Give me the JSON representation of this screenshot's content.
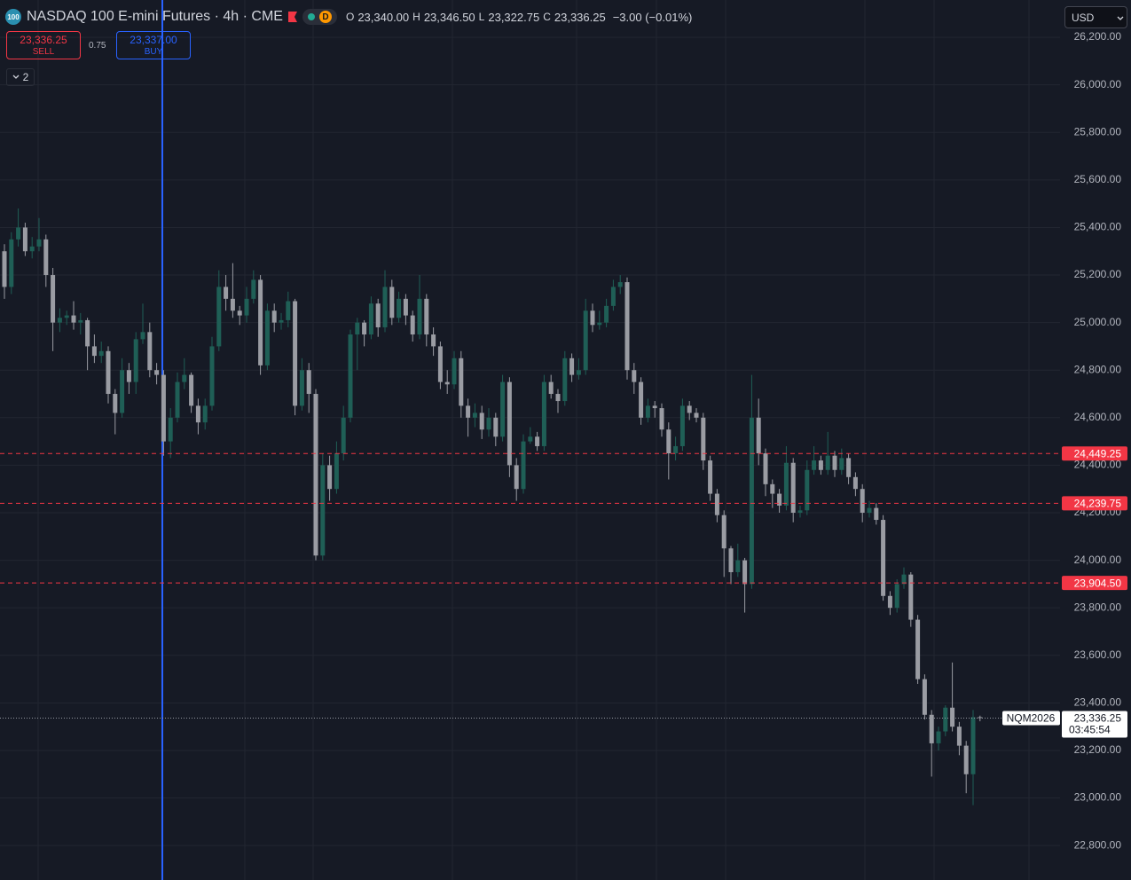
{
  "header": {
    "logo": "100",
    "title": "NASDAQ 100 E-mini Futures · 4h · CME",
    "badge": "D",
    "o_label": "O",
    "open": "23,340.00",
    "h_label": "H",
    "high": "23,346.50",
    "l_label": "L",
    "low": "23,322.75",
    "c_label": "C",
    "close": "23,336.25",
    "change": "−3.00 (−0.01%)"
  },
  "trade": {
    "sell_price": "23,336.25",
    "sell": "SELL",
    "spread": "0.75",
    "buy_price": "23,337.00",
    "buy": "BUY",
    "indicators": "2"
  },
  "currency": "USD",
  "chart_data": {
    "type": "candlestick",
    "up_color": "#1f5f56",
    "down_color": "#9a9ca3",
    "ylim": [
      22655,
      26357
    ],
    "yticks": [
      {
        "value": 22800,
        "label": "22,800.00"
      },
      {
        "value": 23000,
        "label": "23,000.00"
      },
      {
        "value": 23200,
        "label": "23,200.00"
      },
      {
        "value": 23400,
        "label": "23,400.00"
      },
      {
        "value": 23600,
        "label": "23,600.00"
      },
      {
        "value": 23800,
        "label": "23,800.00"
      },
      {
        "value": 24000,
        "label": "24,000.00"
      },
      {
        "value": 24200,
        "label": "24,200.00"
      },
      {
        "value": 24400,
        "label": "24,400.00"
      },
      {
        "value": 24600,
        "label": "24,600.00"
      },
      {
        "value": 24800,
        "label": "24,800.00"
      },
      {
        "value": 25000,
        "label": "25,000.00"
      },
      {
        "value": 25200,
        "label": "25,200.00"
      },
      {
        "value": 25400,
        "label": "25,400.00"
      },
      {
        "value": 25600,
        "label": "25,600.00"
      },
      {
        "value": 25800,
        "label": "25,800.00"
      },
      {
        "value": 26000,
        "label": "26,000.00"
      },
      {
        "value": 26200,
        "label": "26,200.00"
      }
    ],
    "grid": true,
    "hlines": [
      {
        "value": 24449.25,
        "label": "24,449.25"
      },
      {
        "value": 24239.75,
        "label": "24,239.75"
      },
      {
        "value": 23904.5,
        "label": "23,904.50"
      }
    ],
    "hline_color": "#f23645",
    "last_price": {
      "value": 23336.25,
      "label": "23,336.25",
      "symbol": "NQM2026",
      "countdown": "03:45:54"
    },
    "candles": [
      [
        25300,
        25330,
        25100,
        25150
      ],
      [
        25150,
        25380,
        25120,
        25350
      ],
      [
        25350,
        25480,
        25320,
        25400
      ],
      [
        25400,
        25420,
        25280,
        25300
      ],
      [
        25300,
        25360,
        25270,
        25320
      ],
      [
        25320,
        25440,
        25300,
        25350
      ],
      [
        25350,
        25370,
        25150,
        25200
      ],
      [
        25200,
        25230,
        24880,
        25000
      ],
      [
        25000,
        25060,
        24960,
        25020
      ],
      [
        25020,
        25050,
        24990,
        25030
      ],
      [
        25030,
        25090,
        24970,
        25000
      ],
      [
        25000,
        25040,
        24950,
        25010
      ],
      [
        25010,
        25020,
        24800,
        24900
      ],
      [
        24900,
        24950,
        24830,
        24860
      ],
      [
        24860,
        24920,
        24830,
        24880
      ],
      [
        24880,
        24900,
        24660,
        24700
      ],
      [
        24700,
        24720,
        24530,
        24620
      ],
      [
        24620,
        24850,
        24600,
        24800
      ],
      [
        24800,
        24830,
        24700,
        24750
      ],
      [
        24750,
        24960,
        24700,
        24930
      ],
      [
        24930,
        25080,
        24910,
        24960
      ],
      [
        24960,
        25000,
        24770,
        24800
      ],
      [
        24800,
        24830,
        24740,
        24780
      ],
      [
        24780,
        24800,
        24440,
        24500
      ],
      [
        24500,
        24640,
        24430,
        24600
      ],
      [
        24600,
        24790,
        24580,
        24750
      ],
      [
        24750,
        24850,
        24720,
        24780
      ],
      [
        24780,
        24790,
        24620,
        24650
      ],
      [
        24650,
        24680,
        24530,
        24580
      ],
      [
        24580,
        24680,
        24550,
        24650
      ],
      [
        24650,
        24940,
        24630,
        24900
      ],
      [
        24900,
        25220,
        24880,
        25150
      ],
      [
        25150,
        25200,
        25050,
        25100
      ],
      [
        25100,
        25250,
        25020,
        25050
      ],
      [
        25050,
        25070,
        24990,
        25030
      ],
      [
        25030,
        25150,
        25000,
        25100
      ],
      [
        25100,
        25220,
        25080,
        25180
      ],
      [
        25180,
        25200,
        24780,
        24820
      ],
      [
        24820,
        25080,
        24800,
        25050
      ],
      [
        25050,
        25080,
        24960,
        25000
      ],
      [
        25000,
        25040,
        24970,
        25010
      ],
      [
        25010,
        25130,
        24980,
        25090
      ],
      [
        25090,
        25100,
        24610,
        24650
      ],
      [
        24650,
        24850,
        24630,
        24800
      ],
      [
        24800,
        24830,
        24620,
        24700
      ],
      [
        24700,
        24720,
        24000,
        24020
      ],
      [
        24020,
        24450,
        24000,
        24400
      ],
      [
        24400,
        24440,
        24250,
        24300
      ],
      [
        24300,
        24500,
        24280,
        24450
      ],
      [
        24450,
        24650,
        24420,
        24600
      ],
      [
        24600,
        24970,
        24580,
        24950
      ],
      [
        24950,
        25020,
        24800,
        25000
      ],
      [
        25000,
        25010,
        24900,
        24950
      ],
      [
        24950,
        25110,
        24930,
        25080
      ],
      [
        25080,
        25100,
        24940,
        24980
      ],
      [
        24980,
        25220,
        24960,
        25150
      ],
      [
        25150,
        25180,
        24990,
        25020
      ],
      [
        25020,
        25130,
        25000,
        25100
      ],
      [
        25100,
        25120,
        24990,
        25030
      ],
      [
        25030,
        25050,
        24920,
        24950
      ],
      [
        24950,
        25200,
        24930,
        25100
      ],
      [
        25100,
        25120,
        24900,
        24950
      ],
      [
        24950,
        24980,
        24860,
        24900
      ],
      [
        24900,
        24920,
        24720,
        24750
      ],
      [
        24750,
        24800,
        24700,
        24740
      ],
      [
        24740,
        24880,
        24720,
        24850
      ],
      [
        24850,
        24880,
        24600,
        24650
      ],
      [
        24650,
        24680,
        24520,
        24600
      ],
      [
        24600,
        24660,
        24560,
        24620
      ],
      [
        24620,
        24650,
        24510,
        24550
      ],
      [
        24550,
        24640,
        24520,
        24600
      ],
      [
        24600,
        24620,
        24480,
        24520
      ],
      [
        24520,
        24780,
        24500,
        24750
      ],
      [
        24750,
        24770,
        24350,
        24400
      ],
      [
        24400,
        24430,
        24250,
        24300
      ],
      [
        24300,
        24530,
        24280,
        24500
      ],
      [
        24500,
        24560,
        24490,
        24520
      ],
      [
        24520,
        24540,
        24460,
        24480
      ],
      [
        24480,
        24780,
        24460,
        24750
      ],
      [
        24750,
        24780,
        24680,
        24700
      ],
      [
        24700,
        24720,
        24620,
        24670
      ],
      [
        24670,
        24880,
        24650,
        24850
      ],
      [
        24850,
        24870,
        24750,
        24780
      ],
      [
        24780,
        24850,
        24760,
        24800
      ],
      [
        24800,
        25100,
        24780,
        25050
      ],
      [
        25050,
        25080,
        24960,
        24990
      ],
      [
        24990,
        25050,
        24970,
        25000
      ],
      [
        25000,
        25100,
        24980,
        25070
      ],
      [
        25070,
        25180,
        25050,
        25150
      ],
      [
        25150,
        25200,
        25120,
        25170
      ],
      [
        25170,
        25190,
        24760,
        24800
      ],
      [
        24800,
        24830,
        24700,
        24750
      ],
      [
        24750,
        24770,
        24570,
        24600
      ],
      [
        24600,
        24680,
        24580,
        24650
      ],
      [
        24650,
        24670,
        24600,
        24640
      ],
      [
        24640,
        24660,
        24520,
        24550
      ],
      [
        24550,
        24580,
        24340,
        24450
      ],
      [
        24450,
        24520,
        24420,
        24480
      ],
      [
        24480,
        24680,
        24460,
        24650
      ],
      [
        24650,
        24670,
        24590,
        24620
      ],
      [
        24620,
        24640,
        24580,
        24600
      ],
      [
        24600,
        24620,
        24380,
        24420
      ],
      [
        24420,
        24440,
        24250,
        24280
      ],
      [
        24280,
        24300,
        24160,
        24190
      ],
      [
        24190,
        24210,
        23930,
        24050
      ],
      [
        24050,
        24060,
        23900,
        23950
      ],
      [
        23950,
        24070,
        23930,
        24000
      ],
      [
        24000,
        24010,
        23780,
        23900
      ],
      [
        23900,
        24780,
        23880,
        24600
      ],
      [
        24600,
        24680,
        24400,
        24450
      ],
      [
        24450,
        24470,
        24270,
        24320
      ],
      [
        24320,
        24340,
        24220,
        24280
      ],
      [
        24280,
        24300,
        24200,
        24230
      ],
      [
        24230,
        24480,
        24210,
        24410
      ],
      [
        24410,
        24430,
        24160,
        24200
      ],
      [
        24200,
        24230,
        24180,
        24210
      ],
      [
        24210,
        24420,
        24190,
        24380
      ],
      [
        24380,
        24480,
        24360,
        24420
      ],
      [
        24420,
        24440,
        24360,
        24380
      ],
      [
        24380,
        24540,
        24360,
        24440
      ],
      [
        24440,
        24460,
        24350,
        24380
      ],
      [
        24380,
        24470,
        24360,
        24430
      ],
      [
        24430,
        24450,
        24320,
        24350
      ],
      [
        24350,
        24370,
        24270,
        24300
      ],
      [
        24300,
        24320,
        24160,
        24200
      ],
      [
        24200,
        24250,
        24180,
        24220
      ],
      [
        24220,
        24240,
        24150,
        24170
      ],
      [
        24170,
        24190,
        23830,
        23850
      ],
      [
        23850,
        23870,
        23770,
        23800
      ],
      [
        23800,
        23920,
        23780,
        23900
      ],
      [
        23900,
        23970,
        23880,
        23940
      ],
      [
        23940,
        23950,
        23720,
        23750
      ],
      [
        23750,
        23770,
        23480,
        23500
      ],
      [
        23500,
        23520,
        23330,
        23350
      ],
      [
        23350,
        23370,
        23090,
        23230
      ],
      [
        23230,
        23300,
        23200,
        23280
      ],
      [
        23280,
        23390,
        23260,
        23380
      ],
      [
        23380,
        23570,
        23280,
        23300
      ],
      [
        23300,
        23320,
        23180,
        23220
      ],
      [
        23220,
        23240,
        23020,
        23100
      ],
      [
        23100,
        23370,
        22970,
        23340
      ],
      [
        23340,
        23346.5,
        23322.75,
        23336.25
      ]
    ]
  }
}
